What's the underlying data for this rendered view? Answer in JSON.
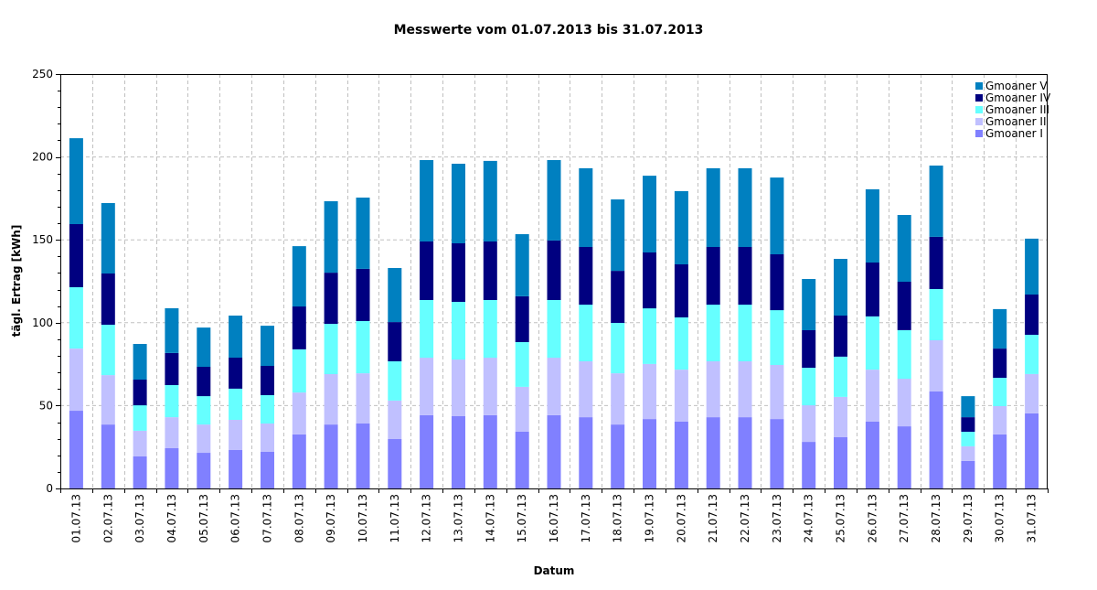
{
  "chart_data": {
    "type": "bar",
    "stacked": true,
    "title": "Messwerte vom 01.07.2013 bis 31.07.2013",
    "xlabel": "Datum",
    "ylabel": "tägl. Ertrag [kWh]",
    "ylim": [
      0,
      250
    ],
    "yticks": [
      0,
      50,
      100,
      150,
      200,
      250
    ],
    "grid": true,
    "legend_position": "top-right",
    "categories": [
      "01.07.13",
      "02.07.13",
      "03.07.13",
      "04.07.13",
      "05.07.13",
      "06.07.13",
      "07.07.13",
      "08.07.13",
      "09.07.13",
      "10.07.13",
      "11.07.13",
      "12.07.13",
      "13.07.13",
      "14.07.13",
      "15.07.13",
      "16.07.13",
      "17.07.13",
      "18.07.13",
      "19.07.13",
      "20.07.13",
      "21.07.13",
      "22.07.13",
      "23.07.13",
      "24.07.13",
      "25.07.13",
      "26.07.13",
      "27.07.13",
      "28.07.13",
      "29.07.13",
      "30.07.13",
      "31.07.13"
    ],
    "series": [
      {
        "name": "Gmoaner I",
        "color": "#8080ff",
        "values": [
          46.9,
          38.6,
          19.3,
          24.3,
          21.5,
          23.2,
          22.1,
          32.6,
          38.6,
          39.2,
          29.8,
          44.2,
          43.6,
          44.2,
          34.2,
          44.2,
          43.0,
          38.6,
          41.9,
          40.3,
          43.0,
          43.0,
          41.9,
          28.1,
          30.9,
          40.3,
          37.5,
          58.5,
          16.6,
          32.6,
          45.3
        ]
      },
      {
        "name": "Gmoaner II",
        "color": "#c0c0ff",
        "values": [
          37.5,
          29.8,
          15.5,
          18.7,
          17.1,
          18.2,
          17.1,
          25.3,
          30.4,
          30.3,
          23.2,
          34.7,
          34.2,
          34.7,
          27.1,
          34.7,
          33.7,
          30.9,
          33.2,
          31.4,
          33.7,
          33.7,
          32.6,
          22.1,
          24.3,
          31.4,
          28.7,
          30.9,
          8.8,
          17.1,
          23.7
        ]
      },
      {
        "name": "Gmoaner III",
        "color": "#66ffff",
        "values": [
          37.0,
          30.4,
          15.4,
          19.4,
          17.1,
          18.8,
          17.1,
          26.0,
          30.3,
          31.5,
          23.7,
          34.8,
          34.8,
          34.8,
          27.0,
          34.8,
          34.2,
          30.4,
          33.6,
          31.5,
          34.2,
          34.2,
          33.1,
          22.6,
          24.3,
          32.1,
          29.3,
          30.9,
          8.8,
          17.1,
          23.7
        ]
      },
      {
        "name": "Gmoaner IV",
        "color": "#000080",
        "values": [
          38.1,
          30.9,
          15.5,
          19.3,
          17.7,
          18.7,
          17.7,
          25.9,
          30.9,
          31.5,
          23.7,
          35.3,
          35.3,
          35.3,
          27.6,
          35.9,
          34.8,
          31.4,
          33.7,
          32.0,
          34.8,
          34.8,
          33.7,
          22.7,
          24.8,
          32.5,
          29.2,
          31.5,
          8.8,
          17.6,
          24.3
        ]
      },
      {
        "name": "Gmoaner V",
        "color": "#0080c0",
        "values": [
          51.8,
          42.5,
          21.5,
          27.0,
          23.7,
          25.4,
          24.2,
          36.4,
          43.1,
          43.0,
          32.6,
          49.1,
          48.0,
          48.6,
          37.5,
          48.5,
          47.5,
          43.1,
          46.3,
          44.2,
          47.5,
          47.5,
          46.3,
          30.9,
          34.2,
          44.2,
          40.3,
          43.0,
          12.7,
          23.8,
          33.7
        ]
      }
    ],
    "legend_order": [
      "Gmoaner V",
      "Gmoaner IV",
      "Gmoaner III",
      "Gmoaner II",
      "Gmoaner I"
    ]
  }
}
